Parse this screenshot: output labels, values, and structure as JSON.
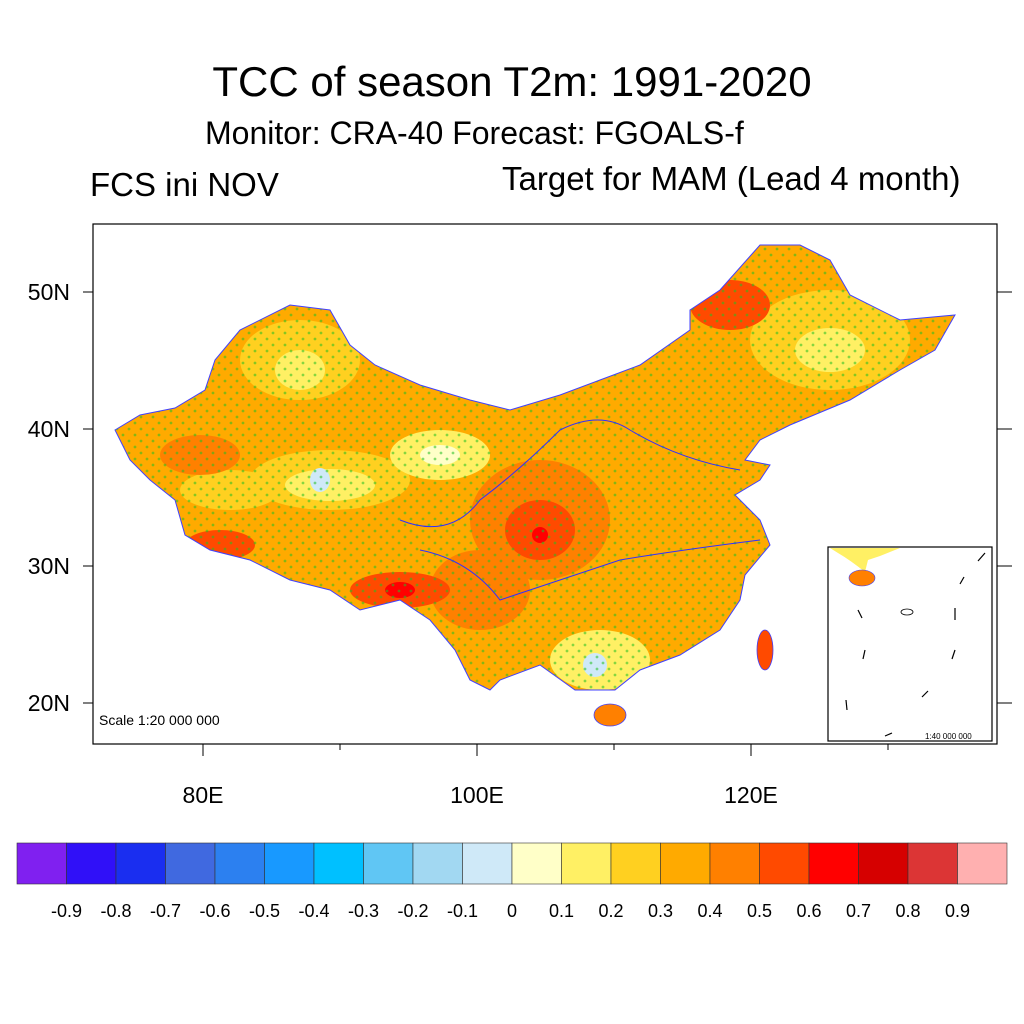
{
  "title": "TCC of season T2m: 1991-2020",
  "subtitle": "Monitor: CRA-40   Forecast: FGOALS-f",
  "left_label": "FCS ini NOV",
  "right_label": "Target for MAM (Lead 4 month)",
  "map": {
    "lat_labels": [
      "50N",
      "40N",
      "30N",
      "20N"
    ],
    "lon_labels": [
      "80E",
      "100E",
      "120E"
    ],
    "scale_label": "Scale 1:20 000 000",
    "inset_scale_label": "1:40 000 000",
    "stipple_color": "#22c022"
  },
  "colorbar": {
    "colors": [
      "#8020f0",
      "#3010f8",
      "#1a2ef0",
      "#4069e0",
      "#2c80f0",
      "#1899ff",
      "#00c0ff",
      "#60c6f4",
      "#a2d8f2",
      "#cfe9f8",
      "#ffffc8",
      "#fff064",
      "#ffd020",
      "#ffaa00",
      "#ff8000",
      "#ff4a00",
      "#ff0000",
      "#d60000",
      "#dc3535",
      "#ffb0b0"
    ],
    "labels": [
      "-0.9",
      "-0.8",
      "-0.7",
      "-0.6",
      "-0.5",
      "-0.4",
      "-0.3",
      "-0.2",
      "-0.1",
      "0",
      "0.1",
      "0.2",
      "0.3",
      "0.4",
      "0.5",
      "0.6",
      "0.7",
      "0.8",
      "0.9"
    ]
  }
}
